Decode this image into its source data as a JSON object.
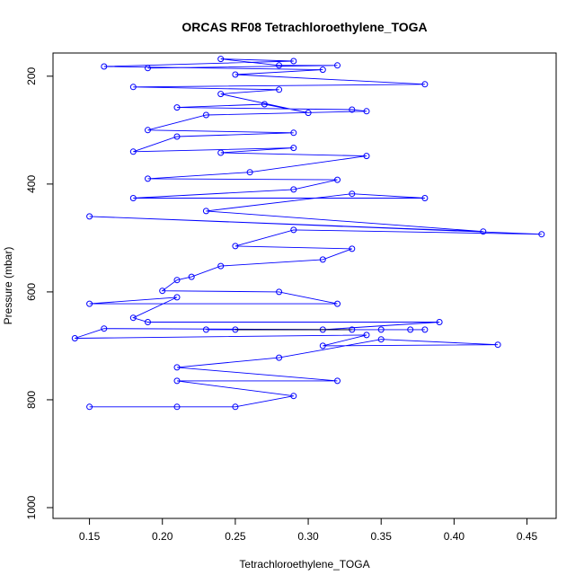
{
  "chart_data": {
    "type": "line",
    "title": "ORCAS RF08 Tetrachloroethylene_TOGA",
    "xlabel": "Tetrachloroethylene_TOGA",
    "ylabel": "Pressure (mbar)",
    "xlim": [
      0.125,
      0.47
    ],
    "ylim": [
      1020,
      157
    ],
    "y_reversed": true,
    "x_ticks": [
      0.15,
      0.2,
      0.25,
      0.3,
      0.35,
      0.4,
      0.45
    ],
    "x_tick_labels": [
      "0.15",
      "0.20",
      "0.25",
      "0.30",
      "0.35",
      "0.40",
      "0.45"
    ],
    "y_ticks": [
      200,
      400,
      600,
      800,
      1000
    ],
    "y_tick_labels": [
      "200",
      "400",
      "600",
      "800",
      "1000"
    ],
    "grid": false,
    "series": [
      {
        "color": "#0000ff",
        "marker": "open-circle",
        "points": [
          [
            0.15,
            813
          ],
          [
            0.21,
            813
          ],
          [
            0.25,
            813
          ],
          [
            0.29,
            793
          ],
          [
            0.21,
            765
          ],
          [
            0.32,
            765
          ],
          [
            0.21,
            740
          ],
          [
            0.28,
            722
          ],
          [
            0.35,
            688
          ],
          [
            0.43,
            698
          ],
          [
            0.31,
            700
          ],
          [
            0.34,
            680
          ],
          [
            0.14,
            686
          ],
          [
            0.16,
            668
          ],
          [
            0.33,
            670
          ],
          [
            0.37,
            670
          ],
          [
            0.35,
            670
          ],
          [
            0.38,
            670
          ],
          [
            0.25,
            670
          ],
          [
            0.23,
            670
          ],
          [
            0.31,
            670
          ],
          [
            0.39,
            656
          ],
          [
            0.19,
            656
          ],
          [
            0.18,
            648
          ],
          [
            0.21,
            610
          ],
          [
            0.15,
            622
          ],
          [
            0.32,
            622
          ],
          [
            0.28,
            600
          ],
          [
            0.2,
            598
          ],
          [
            0.21,
            578
          ],
          [
            0.22,
            572
          ],
          [
            0.24,
            552
          ],
          [
            0.31,
            540
          ],
          [
            0.33,
            520
          ],
          [
            0.25,
            515
          ],
          [
            0.29,
            485
          ],
          [
            0.46,
            493
          ],
          [
            0.15,
            460
          ],
          [
            0.42,
            488
          ],
          [
            0.23,
            450
          ],
          [
            0.33,
            418
          ],
          [
            0.38,
            426
          ],
          [
            0.18,
            426
          ],
          [
            0.29,
            410
          ],
          [
            0.32,
            392
          ],
          [
            0.19,
            390
          ],
          [
            0.26,
            378
          ],
          [
            0.34,
            348
          ],
          [
            0.24,
            342
          ],
          [
            0.29,
            333
          ],
          [
            0.18,
            340
          ],
          [
            0.21,
            312
          ],
          [
            0.29,
            305
          ],
          [
            0.19,
            300
          ],
          [
            0.23,
            272
          ],
          [
            0.34,
            265
          ],
          [
            0.33,
            262
          ],
          [
            0.21,
            258
          ],
          [
            0.27,
            252
          ],
          [
            0.3,
            268
          ],
          [
            0.24,
            233
          ],
          [
            0.28,
            225
          ],
          [
            0.18,
            220
          ],
          [
            0.38,
            215
          ],
          [
            0.25,
            197
          ],
          [
            0.31,
            188
          ],
          [
            0.16,
            182
          ],
          [
            0.29,
            172
          ],
          [
            0.24,
            168
          ],
          [
            0.28,
            180
          ],
          [
            0.32,
            180
          ],
          [
            0.19,
            185
          ]
        ]
      },
      {
        "color": "#000000",
        "marker": "none",
        "points": [
          [
            0.25,
            670
          ],
          [
            0.33,
            670
          ]
        ]
      }
    ]
  }
}
